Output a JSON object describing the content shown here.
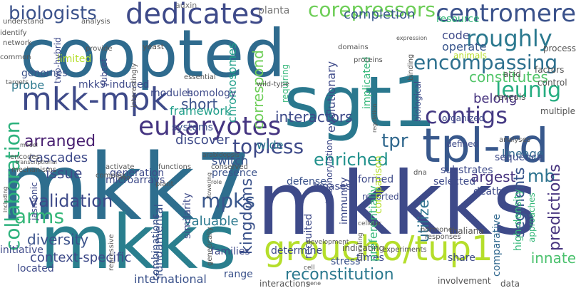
{
  "words": [
    {
      "text": "coopted",
      "color": "#2f6b8e"
    },
    {
      "text": "mkk7",
      "color": "#2e6e8e"
    },
    {
      "text": "mkkks",
      "color": "#3e4a89"
    },
    {
      "text": "sgt1",
      "color": "#2a788e"
    },
    {
      "text": "mkks",
      "color": "#2a7f8e"
    },
    {
      "text": "tpl-rd",
      "color": "#38588c"
    },
    {
      "text": "groucho/tup1",
      "color": "#b5de2b"
    },
    {
      "text": "dedicates",
      "color": "#3e4a89"
    },
    {
      "text": "mkk-mpk",
      "color": "#3e4a89"
    },
    {
      "text": "eukaryotes",
      "color": "#453581"
    },
    {
      "text": "collaboration",
      "color": "#2db27d"
    },
    {
      "text": "centromere",
      "color": "#3b528b"
    },
    {
      "text": "roughly",
      "color": "#2a788e"
    },
    {
      "text": "encompassing",
      "color": "#2d708e"
    },
    {
      "text": "leunig",
      "color": "#26ad81"
    },
    {
      "text": "contigs",
      "color": "#443983"
    },
    {
      "text": "corepressors",
      "color": "#6ece58"
    },
    {
      "text": "biologists",
      "color": "#3b528b"
    },
    {
      "text": "validation",
      "color": "#3e4a89"
    },
    {
      "text": "arms",
      "color": "#35b779"
    },
    {
      "text": "topless",
      "color": "#3e4a89"
    },
    {
      "text": "enriched",
      "color": "#21918c"
    },
    {
      "text": "mpks",
      "color": "#39568c"
    },
    {
      "text": "kingdoms",
      "color": "#3b528b"
    },
    {
      "text": "tpr",
      "color": "#31688e"
    },
    {
      "text": "mb",
      "color": "#2c728e"
    },
    {
      "text": "reconstitution",
      "color": "#2a788e"
    },
    {
      "text": "context-specific",
      "color": "#3e4a89"
    },
    {
      "text": "predictions",
      "color": "#46337e"
    },
    {
      "text": "segments",
      "color": "#39568c"
    },
    {
      "text": "diversity",
      "color": "#3b528b"
    },
    {
      "text": "chromosomes",
      "color": "#1f9e89"
    },
    {
      "text": "correspond",
      "color": "#6ece58"
    },
    {
      "text": "constitutes",
      "color": "#52c569"
    },
    {
      "text": "arranged",
      "color": "#481f70"
    },
    {
      "text": "short",
      "color": "#3b528b"
    },
    {
      "text": "cascades",
      "color": "#3e4a89"
    },
    {
      "text": "issue",
      "color": "#3e4a89"
    },
    {
      "text": "innate",
      "color": "#4ac16d"
    },
    {
      "text": "argest",
      "color": "#46337e"
    },
    {
      "text": "utilize",
      "color": "#2c728e"
    },
    {
      "text": "international",
      "color": "#3b528b"
    },
    {
      "text": "valuable",
      "color": "#2a788e"
    },
    {
      "text": "fundamental",
      "color": "#3b528b"
    },
    {
      "text": "completion",
      "color": "#38588c"
    },
    {
      "text": "interactors",
      "color": "#3e4a89"
    },
    {
      "text": "belong",
      "color": "#46337e"
    },
    {
      "text": "lineage",
      "color": "#31688e"
    },
    {
      "text": "probe",
      "color": "#2a788e"
    },
    {
      "text": "genomes",
      "color": "#3b528b"
    },
    {
      "text": "mkk9-induced",
      "color": "#3e4a89"
    },
    {
      "text": "framework",
      "color": "#1f9e89"
    },
    {
      "text": "discover",
      "color": "#3e4a89"
    },
    {
      "text": "operate",
      "color": "#39568c"
    },
    {
      "text": "code",
      "color": "#3e4a89"
    },
    {
      "text": "evolutionary",
      "color": "#3e4a89"
    },
    {
      "text": "initiative",
      "color": "#3e4a89"
    },
    {
      "text": "located",
      "color": "#3e4a89"
    },
    {
      "text": "segments",
      "color": "#39568c"
    },
    {
      "text": "comparative",
      "color": "#31688e"
    },
    {
      "text": "high-density",
      "color": "#35b779"
    },
    {
      "text": "wide",
      "color": "#2a788e"
    },
    {
      "text": "switch",
      "color": "#3b528b"
    },
    {
      "text": "presence",
      "color": "#3b528b"
    },
    {
      "text": "auxin",
      "color": "#777777"
    },
    {
      "text": "planta",
      "color": "#777777"
    },
    {
      "text": "yeast",
      "color": "#555555"
    },
    {
      "text": "modules",
      "color": "#3e4a89"
    },
    {
      "text": "homology",
      "color": "#3e4a89"
    },
    {
      "text": "systems",
      "color": "#3b528b"
    },
    {
      "text": "similarity",
      "color": "#3e4a89"
    },
    {
      "text": "combinations",
      "color": "#3b528b"
    },
    {
      "text": "families",
      "color": "#3e4a89"
    },
    {
      "text": "range",
      "color": "#3b528b"
    },
    {
      "text": "determine",
      "color": "#3e4a89"
    },
    {
      "text": "reported",
      "color": "#3e4a89"
    },
    {
      "text": "times",
      "color": "#3e4a89"
    },
    {
      "text": "stress",
      "color": "#3b528b"
    },
    {
      "text": "kinases",
      "color": "#3e4a89"
    },
    {
      "text": "recruited",
      "color": "#3e4a89"
    },
    {
      "text": "defense",
      "color": "#3b528b"
    },
    {
      "text": "formed",
      "color": "#3e4a89"
    },
    {
      "text": "selected",
      "color": "#3e4a89"
    },
    {
      "text": "substrates",
      "color": "#3e4a89"
    },
    {
      "text": "sequence",
      "color": "#3e4a89"
    },
    {
      "text": "limited",
      "color": "#b5de2b"
    },
    {
      "text": "generation",
      "color": "#3e4a89"
    },
    {
      "text": "microarrays",
      "color": "#3e4a89"
    },
    {
      "text": "jasmonic",
      "color": "#3e4a89"
    },
    {
      "text": "two-hybrid",
      "color": "#3e4a89"
    },
    {
      "text": "subset",
      "color": "#3e4a89"
    },
    {
      "text": "resource",
      "color": "#35b779"
    },
    {
      "text": "animals",
      "color": "#b5de2b"
    },
    {
      "text": "process",
      "color": "#555555"
    },
    {
      "text": "factors",
      "color": "#555555"
    },
    {
      "text": "control",
      "color": "#555555"
    },
    {
      "text": "multiple",
      "color": "#555555"
    },
    {
      "text": "reveals",
      "color": "#555555"
    },
    {
      "text": "organized",
      "color": "#3e4a89"
    },
    {
      "text": "death",
      "color": "#3e4a89"
    },
    {
      "text": "defined",
      "color": "#3e4a89"
    },
    {
      "text": "approaches",
      "color": "#35b779"
    },
    {
      "text": "share",
      "color": "#3e4a89"
    },
    {
      "text": "preferentially",
      "color": "#35b779"
    },
    {
      "text": "immunity",
      "color": "#3e4a89"
    },
    {
      "text": "phosphorylation",
      "color": "#3e4a89"
    },
    {
      "text": "implicated",
      "color": "#35b779"
    },
    {
      "text": "requiring",
      "color": "#35b779"
    },
    {
      "text": "biological",
      "color": "#3e4a89"
    },
    {
      "text": "comparison",
      "color": "#b5de2b"
    },
    {
      "text": "experiments",
      "color": "#555555"
    },
    {
      "text": "responses",
      "color": "#555555"
    },
    {
      "text": "thaliana",
      "color": "#555555"
    },
    {
      "text": "hormone",
      "color": "#555555"
    },
    {
      "text": "indicating",
      "color": "#555555"
    },
    {
      "text": "interactions",
      "color": "#555555"
    },
    {
      "text": "involvement",
      "color": "#555555"
    },
    {
      "text": "data",
      "color": "#555555"
    },
    {
      "text": "cell",
      "color": "#555555"
    },
    {
      "text": "development",
      "color": "#555555"
    },
    {
      "text": "signaling",
      "color": "#555555"
    },
    {
      "text": "cellular",
      "color": "#555555"
    },
    {
      "text": "dna",
      "color": "#555555"
    },
    {
      "text": "regulation",
      "color": "#555555"
    },
    {
      "text": "proteins",
      "color": "#555555"
    },
    {
      "text": "domains",
      "color": "#555555"
    },
    {
      "text": "binding",
      "color": "#555555"
    },
    {
      "text": "expression",
      "color": "#555555"
    },
    {
      "text": "acid",
      "color": "#555555"
    },
    {
      "text": "analyses",
      "color": "#555555"
    },
    {
      "text": "functions",
      "color": "#555555"
    },
    {
      "text": "plant",
      "color": "#555555"
    },
    {
      "text": "role",
      "color": "#555555"
    },
    {
      "text": "flowering",
      "color": "#555555"
    },
    {
      "text": "arabidopsis",
      "color": "#555555"
    },
    {
      "text": "essential",
      "color": "#555555"
    },
    {
      "text": "wild-type",
      "color": "#555555"
    },
    {
      "text": "interestingly",
      "color": "#555555"
    },
    {
      "text": "provide",
      "color": "#555555"
    },
    {
      "text": "common",
      "color": "#555555"
    },
    {
      "text": "network",
      "color": "#555555"
    },
    {
      "text": "targets",
      "color": "#555555"
    },
    {
      "text": "identify",
      "color": "#555555"
    },
    {
      "text": "understand",
      "color": "#555555"
    },
    {
      "text": "analysis",
      "color": "#555555"
    },
    {
      "text": "encodes",
      "color": "#555555"
    },
    {
      "text": "transcriptional",
      "color": "#555555"
    },
    {
      "text": "model",
      "color": "#555555"
    },
    {
      "text": "mechanisms",
      "color": "#555555"
    },
    {
      "text": "complex",
      "color": "#555555"
    },
    {
      "text": "activate",
      "color": "#555555"
    },
    {
      "text": "vivo",
      "color": "#555555"
    },
    {
      "text": "including",
      "color": "#555555"
    },
    {
      "text": "repressive",
      "color": "#555555"
    },
    {
      "text": "genetically",
      "color": "#555555"
    },
    {
      "text": "conserved",
      "color": "#555555"
    },
    {
      "text": "gene",
      "color": "#555555"
    }
  ]
}
